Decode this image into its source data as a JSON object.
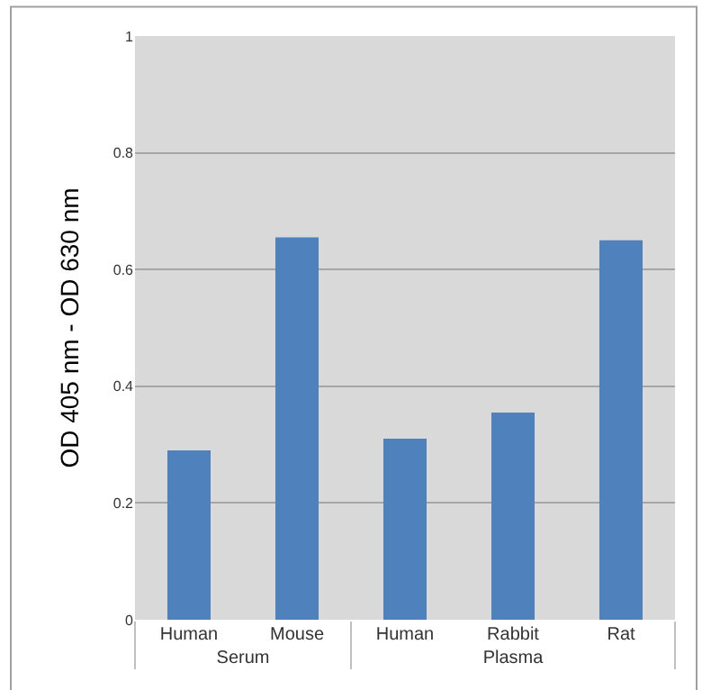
{
  "chart_data": {
    "type": "bar",
    "ylabel": "OD 405 nm - OD 630 nm",
    "categories": [
      "Human",
      "Mouse",
      "Human",
      "Rabbit",
      "Rat"
    ],
    "values": [
      0.29,
      0.655,
      0.31,
      0.355,
      0.65
    ],
    "color": "#4f81bd",
    "annotations": [
      "Serum",
      "Plasma"
    ],
    "ylim": [
      0,
      1
    ],
    "yticks": [
      0,
      0.2,
      0.4,
      0.6,
      0.8,
      1
    ],
    "grid": "y"
  }
}
